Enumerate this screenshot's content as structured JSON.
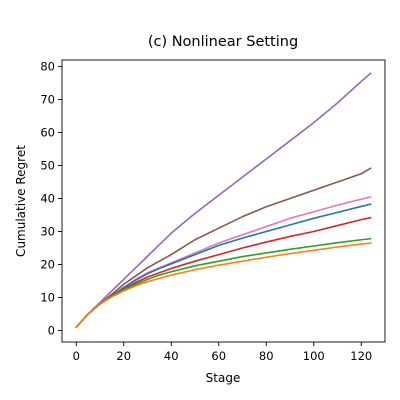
{
  "chart_data": {
    "type": "line",
    "title": "(c) Nonlinear Setting",
    "xlabel": "Stage",
    "ylabel": "Cumulative Regret",
    "xlim": [
      -6,
      130
    ],
    "ylim": [
      -3.5,
      82
    ],
    "xticks": [
      0,
      20,
      40,
      60,
      80,
      100,
      120
    ],
    "yticks": [
      0,
      10,
      20,
      30,
      40,
      50,
      60,
      70,
      80
    ],
    "grid": false,
    "legend": "none",
    "x": [
      0,
      5,
      10,
      15,
      20,
      25,
      30,
      35,
      40,
      50,
      60,
      70,
      80,
      90,
      100,
      110,
      120,
      124
    ],
    "series": [
      {
        "color": "#9467bd",
        "values": [
          1,
          5.0,
          8.5,
          12.0,
          15.5,
          19.0,
          22.5,
          26.0,
          29.5,
          35.5,
          41.0,
          46.5,
          52.0,
          57.5,
          63.0,
          69.0,
          75.5,
          78.0
        ]
      },
      {
        "color": "#8c564b",
        "values": [
          1,
          5.0,
          8.0,
          11.0,
          14.0,
          16.5,
          19.0,
          21.0,
          23.0,
          27.5,
          31.0,
          34.5,
          37.5,
          40.0,
          42.5,
          45.0,
          47.5,
          49.2
        ]
      },
      {
        "color": "#e377c2",
        "values": [
          1,
          5.0,
          8.0,
          10.5,
          13.0,
          15.5,
          17.5,
          19.0,
          20.5,
          23.5,
          26.5,
          29.0,
          31.5,
          34.0,
          36.0,
          38.0,
          39.8,
          40.5
        ]
      },
      {
        "color": "#1f77b4",
        "values": [
          1,
          5.0,
          8.0,
          10.5,
          13.0,
          15.2,
          17.2,
          18.8,
          20.2,
          23.0,
          25.8,
          28.0,
          30.0,
          32.0,
          34.0,
          35.8,
          37.6,
          38.3
        ]
      },
      {
        "color": "#d62728",
        "values": [
          1,
          5.0,
          8.0,
          10.5,
          12.5,
          14.5,
          16.2,
          17.5,
          18.8,
          21.0,
          23.0,
          25.0,
          26.8,
          28.5,
          30.0,
          31.8,
          33.6,
          34.2
        ]
      },
      {
        "color": "#2ca02c",
        "values": [
          1,
          5.0,
          8.0,
          10.4,
          12.3,
          14.0,
          15.5,
          16.8,
          17.8,
          19.6,
          21.0,
          22.4,
          23.5,
          24.6,
          25.6,
          26.6,
          27.5,
          27.8
        ]
      },
      {
        "color": "#ff7f0e",
        "values": [
          1,
          5.0,
          8.0,
          10.2,
          12.0,
          13.5,
          14.8,
          15.8,
          16.8,
          18.4,
          19.8,
          21.0,
          22.2,
          23.3,
          24.3,
          25.3,
          26.2,
          26.5
        ]
      }
    ]
  }
}
